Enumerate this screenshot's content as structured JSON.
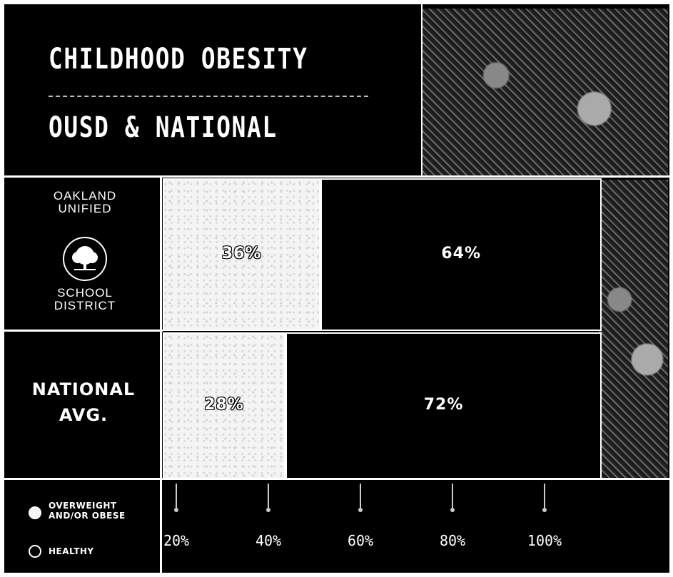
{
  "title_line1": "CHILDHOOD OBESITY",
  "title_line2": "OUSD & NATIONAL",
  "logo": {
    "top_line1": "OAKLAND",
    "top_line2": "UNIFIED",
    "bottom_line1": "SCHOOL",
    "bottom_line2": "DISTRICT"
  },
  "legend": {
    "overweight_line1": "OVERWEIGHT",
    "overweight_line2": "AND/OR OBESE",
    "healthy": "HEALTHY"
  },
  "colors": {
    "background": "#000000",
    "overweight": "#f4f4f4",
    "healthy": "#000000",
    "lines": "#ffffff"
  },
  "chart_data": {
    "type": "bar",
    "orientation": "horizontal-stacked",
    "categories": [
      "OAKLAND UNIFIED SCHOOL DISTRICT",
      "NATIONAL AVG."
    ],
    "row_labels": [
      {
        "line1": "",
        "line2": ""
      },
      {
        "line1": "NATIONAL",
        "line2": "AVG."
      }
    ],
    "series": [
      {
        "name": "OVERWEIGHT AND/OR OBESE",
        "values": [
          36,
          28
        ],
        "labels": [
          "36%",
          "28%"
        ]
      },
      {
        "name": "HEALTHY",
        "values": [
          64,
          72
        ],
        "labels": [
          "64%",
          "72%"
        ]
      }
    ],
    "x_ticks": [
      20,
      40,
      60,
      80,
      100
    ],
    "x_tick_labels": [
      "20%",
      "40%",
      "60%",
      "80%",
      "100%"
    ],
    "xlim": [
      0,
      100
    ],
    "legend_position": "bottom-left"
  }
}
